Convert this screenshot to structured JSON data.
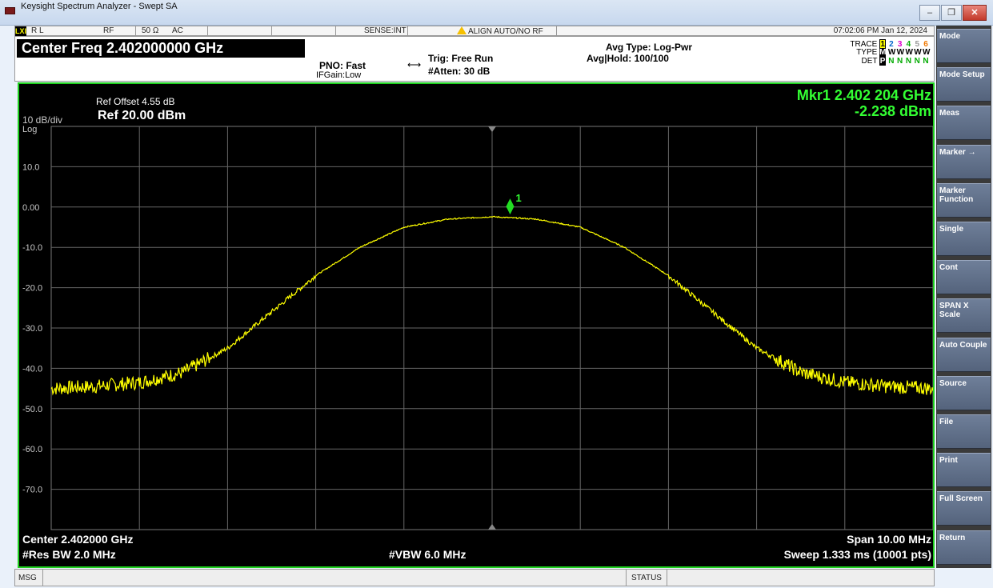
{
  "window": {
    "title": "Keysight Spectrum Analyzer - Swept SA",
    "minimize": "–",
    "restore": "❐",
    "close": "✕"
  },
  "statusline": {
    "rl_badge": "LXI",
    "rl": "R L",
    "rf": "RF",
    "impedance": "50 Ω",
    "coupling": "AC",
    "sense": "SENSE:INT",
    "align": "ALIGN AUTO/NO RF",
    "datetime": "07:02:06 PM Jan 12, 2024"
  },
  "settings": {
    "center_freq": "Center Freq 2.402000000 GHz",
    "pno": "PNO: Fast",
    "ifgain": "IFGain:Low",
    "trig": "Trig: Free Run",
    "atten": "#Atten: 30 dB",
    "avg_type": "Avg Type: Log-Pwr",
    "avg_hold": "Avg|Hold: 100/100",
    "trace_label": "TRACE",
    "type_label": "TYPE",
    "det_label": "DET",
    "trace_nums": [
      "1",
      "2",
      "3",
      "4",
      "5",
      "6"
    ],
    "type_values": [
      "M",
      "W",
      "W",
      "W",
      "W",
      "W"
    ],
    "det_values": [
      "P",
      "N",
      "N",
      "N",
      "N",
      "N"
    ]
  },
  "screen": {
    "ref_offset": "Ref Offset 4.55 dB",
    "scale": "10 dB/div",
    "ref_level": "Ref 20.00 dBm",
    "log": "Log",
    "marker_freq": "Mkr1 2.402 204 GHz",
    "marker_amp": "-2.238 dBm",
    "marker_label": "1",
    "center": "Center 2.402000 GHz",
    "res_bw": "#Res BW 2.0 MHz",
    "vbw": "#VBW 6.0 MHz",
    "span": "Span 10.00 MHz",
    "sweep": "Sweep  1.333 ms (10001 pts)"
  },
  "softkeys": [
    "Mode",
    "Mode Setup",
    "Meas",
    "Marker →",
    "Marker Function",
    "Single",
    "Cont",
    "SPAN X Scale",
    "Auto Couple",
    "Source",
    "File",
    "Print",
    "Full Screen",
    "Return"
  ],
  "msgbar": {
    "msg": "MSG",
    "status": "STATUS"
  },
  "colors": {
    "trace": "#ffff00",
    "marker": "#22dd22",
    "marker_text": "#33ff33",
    "border": "#1fd01f"
  },
  "chart_data": {
    "type": "line",
    "xlabel": "",
    "ylabel": "",
    "x_center_ghz": 2.402,
    "span_mhz": 10.0,
    "ylim": [
      -80,
      20
    ],
    "y_tick_labels": [
      "10.0",
      "0.00",
      "-10.0",
      "-20.0",
      "-30.0",
      "-40.0",
      "-50.0",
      "-60.0",
      "-70.0"
    ],
    "y_tick_values": [
      10,
      0,
      -10,
      -20,
      -30,
      -40,
      -50,
      -60,
      -70
    ],
    "series": [
      {
        "x": [
          -5.0,
          -4.5,
          -4.0,
          -3.5,
          -3.0,
          -2.5,
          -2.0,
          -1.5,
          -1.0,
          -0.5,
          0.0,
          0.5,
          1.0,
          1.5,
          2.0,
          2.5,
          3.0,
          3.5,
          4.0,
          4.5,
          5.0
        ],
        "values": [
          -45,
          -44.5,
          -43.5,
          -41,
          -35,
          -26,
          -17,
          -10,
          -5,
          -3,
          -2.4,
          -3,
          -5,
          -10,
          -17,
          -26,
          -35,
          -41,
          -43.5,
          -44.5,
          -45
        ]
      }
    ],
    "marker": {
      "x": 0.204,
      "y": -2.238
    }
  }
}
